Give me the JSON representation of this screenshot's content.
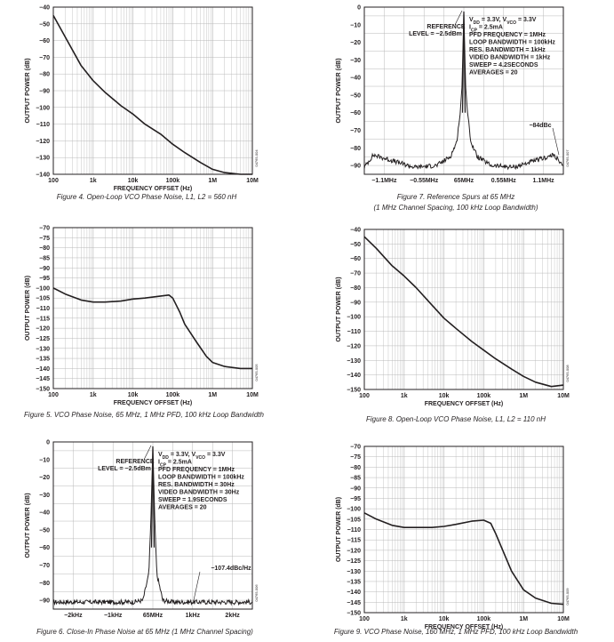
{
  "figures": [
    {
      "id": "fig4",
      "kind": "log",
      "ylim": [
        -140,
        -40
      ],
      "ystep": 10,
      "ticks_x": [
        "100",
        "1k",
        "10k",
        "100k",
        "1M",
        "10M"
      ],
      "ylabel": "OUTPUT POWER (dB)",
      "xlabel": "FREQUENCY OFFSET (Hz)",
      "code": "04765-004",
      "caption": "Figure 4. Open-Loop VCO Phase Noise, L1, L2 = 560 nH"
    },
    {
      "id": "fig5",
      "kind": "log",
      "ylim": [
        -150,
        -70
      ],
      "ystep": 5,
      "ticks_x": [
        "100",
        "1k",
        "10k",
        "100k",
        "1M",
        "10M"
      ],
      "ylabel": "OUTPUT POWER (dB)",
      "xlabel": "FREQUENCY OFFSET (Hz)",
      "code": "04765-005",
      "caption": "Figure 5. VCO Phase Noise, 65 MHz, 1 MHz PFD, 100 kHz Loop Bandwidth"
    },
    {
      "id": "fig6",
      "kind": "spec",
      "ylim": [
        -95,
        0
      ],
      "ystep": 10,
      "ticks_x": [
        "−2kHz",
        "−1kHz",
        "65MHz",
        "1kHz",
        "2kHz"
      ],
      "ylabel": "OUTPUT POWER (dB)",
      "xlabel": "",
      "code": "04765-006",
      "ref_lines": [
        "REFERENCE",
        "LEVEL = −2.5dBm"
      ],
      "settings": [
        "V_DD = 3.3V, V_VCO = 3.3V",
        "I_CP = 2.5mA",
        "PFD FREQUENCY = 1MHz",
        "LOOP BANDWIDTH = 100kHz",
        "RES. BANDWIDTH = 30Hz",
        "VIDEO BANDWIDTH = 30Hz",
        "SWEEP = 1.9SECONDS",
        "AVERAGES = 20"
      ],
      "marker_label": "−107.4dBc/Hz",
      "caption": "Figure 6. Close-In Phase Noise at 65 MHz (1 MHz Channel Spacing)"
    },
    {
      "id": "fig7",
      "kind": "spec",
      "ylim": [
        -95,
        0
      ],
      "ystep": 10,
      "ticks_x": [
        "−1.1MHz",
        "−0.55MHz",
        "65MHz",
        "0.55MHz",
        "1.1MHz"
      ],
      "ylabel": "OUTPUT POWER (dB)",
      "xlabel": "",
      "code": "04765-007",
      "ref_lines": [
        "REFERENCE",
        "LEVEL = −2.5dBm"
      ],
      "settings": [
        "V_DD = 3.3V, V_VCO = 3.3V",
        "I_CP = 2.5mA",
        "PFD FREQUENCY = 1MHz",
        "LOOP BANDWIDTH = 100kHz",
        "RES. BANDWIDTH = 1kHz",
        "VIDEO BANDWIDTH = 1kHz",
        "SWEEP = 4.2SECONDS",
        "AVERAGES = 20"
      ],
      "marker_label": "−84dBc",
      "caption": [
        "Figure 7. Reference Spurs at 65 MHz",
        "(1 MHz Channel Spacing, 100 kHz Loop Bandwidth)"
      ]
    },
    {
      "id": "fig8",
      "kind": "log",
      "ylim": [
        -150,
        -40
      ],
      "ystep": 10,
      "ticks_x": [
        "100",
        "1k",
        "10k",
        "100k",
        "1M",
        "10M"
      ],
      "ylabel": "OUTPUT POWER (dB)",
      "xlabel": "FREQUENCY OFFSET (Hz)",
      "code": "04765-008",
      "caption": "Figure 8. Open-Loop VCO Phase Noise, L1, L2 = 110 nH"
    },
    {
      "id": "fig9",
      "kind": "log",
      "ylim": [
        -150,
        -70
      ],
      "ystep": 5,
      "ticks_x": [
        "100",
        "1k",
        "10k",
        "100k",
        "1M",
        "10M"
      ],
      "ylabel": "OUTPUT POWER (dB)",
      "xlabel": "FREQUENCY OFFSET (Hz)",
      "code": "04765-009",
      "caption": "Figure 9. VCO Phase Noise, 160 MHz, 1 MHz PFD, 100 kHz Loop Bandwidth"
    }
  ],
  "chart_data": [
    {
      "type": "line",
      "title": "Figure 4. Open-Loop VCO Phase Noise, L1, L2 = 560 nH",
      "xlabel": "FREQUENCY OFFSET (Hz)",
      "ylabel": "OUTPUT POWER (dB)",
      "x_scale": "log",
      "xlim": [
        100,
        10000000
      ],
      "ylim": [
        -140,
        -40
      ],
      "grid": true,
      "x": [
        100,
        200,
        500,
        1000,
        2000,
        5000,
        10000,
        20000,
        50000,
        100000,
        200000,
        500000,
        1000000,
        2000000,
        5000000,
        10000000
      ],
      "y": [
        -45,
        -58,
        -75,
        -84,
        -91,
        -99,
        -104,
        -110,
        -116,
        -122,
        -127,
        -133,
        -137,
        -139,
        -140,
        -140
      ]
    },
    {
      "type": "line",
      "title": "Figure 5. VCO Phase Noise, 65 MHz, 1 MHz PFD, 100 kHz Loop Bandwidth",
      "xlabel": "FREQUENCY OFFSET (Hz)",
      "ylabel": "OUTPUT POWER (dB)",
      "x_scale": "log",
      "xlim": [
        100,
        10000000
      ],
      "ylim": [
        -150,
        -70
      ],
      "grid": true,
      "x": [
        100,
        200,
        500,
        1000,
        2000,
        5000,
        10000,
        20000,
        50000,
        80000,
        100000,
        150000,
        200000,
        400000,
        700000,
        1000000,
        2000000,
        5000000,
        10000000
      ],
      "y": [
        -100,
        -103,
        -106,
        -107,
        -107,
        -106.5,
        -105.5,
        -105,
        -104,
        -103.5,
        -105,
        -112,
        -118,
        -127,
        -134,
        -137,
        -139,
        -140,
        -140
      ]
    },
    {
      "type": "line",
      "title": "Figure 6. Close-In Phase Noise at 65 MHz (1 MHz Channel Spacing)",
      "xlabel": "",
      "ylabel": "OUTPUT POWER (dB)",
      "xlim": [
        -2.5,
        2.5
      ],
      "ylim": [
        -95,
        0
      ],
      "x_unit": "kHz offset from 65MHz",
      "grid": true,
      "x": [
        -2.5,
        -2.0,
        -1.5,
        -1.0,
        -0.5,
        -0.25,
        -0.1,
        -0.05,
        0,
        0.05,
        0.1,
        0.25,
        0.5,
        1.0,
        1.5,
        2.0,
        2.5
      ],
      "y": [
        -91,
        -91,
        -91,
        -91,
        -91,
        -90,
        -75,
        -45,
        -2.5,
        -45,
        -75,
        -90,
        -91,
        -91,
        -91,
        -91,
        -91
      ]
    },
    {
      "type": "line",
      "title": "Figure 7. Reference Spurs at 65 MHz (1 MHz Channel Spacing, 100 kHz Loop Bandwidth)",
      "xlabel": "",
      "ylabel": "OUTPUT POWER (dB)",
      "xlim": [
        -1.1,
        1.1
      ],
      "ylim": [
        -95,
        0
      ],
      "x_unit": "MHz offset from 65MHz",
      "grid": true,
      "x": [
        -1.1,
        -1.0,
        -0.55,
        -0.3,
        -0.15,
        -0.08,
        -0.04,
        -0.02,
        0,
        0.02,
        0.04,
        0.08,
        0.15,
        0.3,
        0.55,
        1.0,
        1.1
      ],
      "y": [
        -91,
        -84,
        -91,
        -90,
        -85,
        -77,
        -60,
        -45,
        -2.5,
        -45,
        -60,
        -77,
        -85,
        -90,
        -91,
        -84,
        -91
      ]
    },
    {
      "type": "line",
      "title": "Figure 8. Open-Loop VCO Phase Noise, L1, L2 = 110 nH",
      "xlabel": "FREQUENCY OFFSET (Hz)",
      "ylabel": "OUTPUT POWER (dB)",
      "x_scale": "log",
      "xlim": [
        100,
        10000000
      ],
      "ylim": [
        -150,
        -40
      ],
      "grid": true,
      "x": [
        100,
        200,
        500,
        1000,
        2000,
        5000,
        10000,
        20000,
        50000,
        100000,
        200000,
        500000,
        1000000,
        2000000,
        5000000,
        10000000
      ],
      "y": [
        -45,
        -53,
        -65,
        -72,
        -80,
        -92,
        -101,
        -108,
        -117,
        -123,
        -129,
        -136,
        -141,
        -145,
        -148,
        -147
      ]
    },
    {
      "type": "line",
      "title": "Figure 9. VCO Phase Noise, 160 MHz, 1 MHz PFD, 100 kHz Loop Bandwidth",
      "xlabel": "FREQUENCY OFFSET (Hz)",
      "ylabel": "OUTPUT POWER (dB)",
      "x_scale": "log",
      "xlim": [
        100,
        10000000
      ],
      "ylim": [
        -150,
        -70
      ],
      "grid": true,
      "x": [
        100,
        200,
        500,
        1000,
        2000,
        5000,
        10000,
        20000,
        50000,
        100000,
        150000,
        200000,
        300000,
        500000,
        1000000,
        2000000,
        5000000,
        10000000
      ],
      "y": [
        -102,
        -105,
        -108,
        -109,
        -109,
        -109,
        -108.5,
        -107.5,
        -106,
        -105.5,
        -107,
        -112,
        -120,
        -130,
        -139,
        -143,
        -145.5,
        -146
      ]
    }
  ]
}
